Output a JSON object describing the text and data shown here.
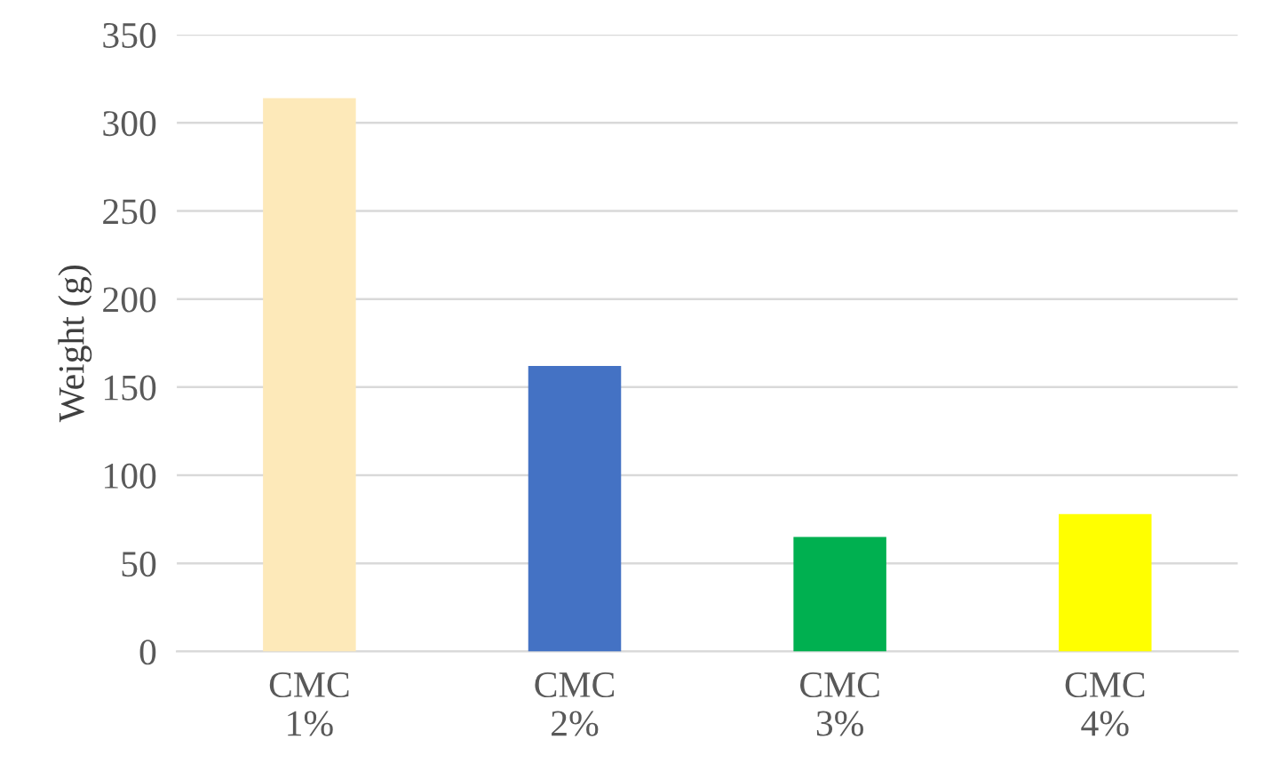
{
  "chart_data": {
    "type": "bar",
    "ylabel": "Weight (g)",
    "categories": [
      "CMC\n1%",
      "CMC\n2%",
      "CMC\n3%",
      "CMC\n4%"
    ],
    "values": [
      314,
      162,
      65,
      78
    ],
    "colors": [
      "#fde9b9",
      "#4472c4",
      "#00b050",
      "#ffff00"
    ],
    "ylim": [
      0,
      350
    ],
    "yticks": [
      0,
      50,
      100,
      150,
      200,
      250,
      300,
      350
    ],
    "grid": "y",
    "legend": false
  }
}
